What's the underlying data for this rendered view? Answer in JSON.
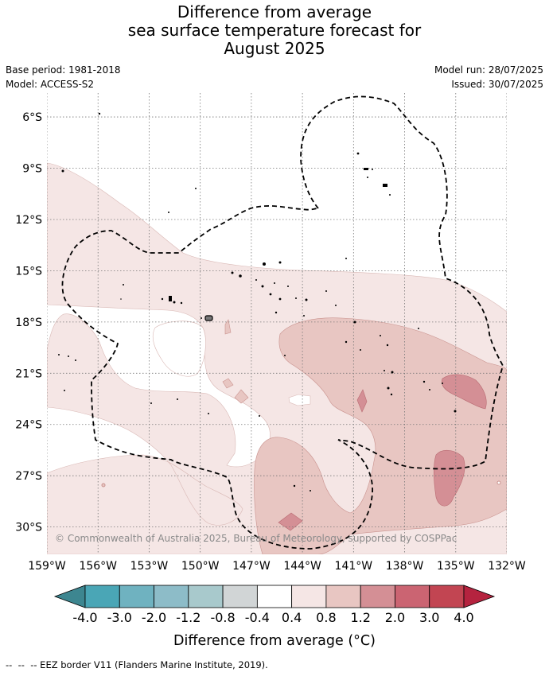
{
  "title": {
    "line1": "Difference from average",
    "line2": "sea surface temperature forecast for",
    "line3": "August 2025"
  },
  "meta_left": {
    "base_period": "Base period: 1981-2018",
    "model": "Model: ACCESS-S2"
  },
  "meta_right": {
    "model_run": "Model run: 28/07/2025",
    "issued": "Issued: 30/07/2025"
  },
  "map": {
    "lon_range": [
      -159,
      -132
    ],
    "lat_range": [
      -31.6,
      -4.6
    ],
    "lon_ticks": [
      "159°W",
      "156°W",
      "153°W",
      "150°W",
      "147°W",
      "144°W",
      "141°W",
      "138°W",
      "135°W",
      "132°W"
    ],
    "lat_ticks": [
      "6°S",
      "9°S",
      "12°S",
      "15°S",
      "18°S",
      "21°S",
      "24°S",
      "27°S",
      "30°S"
    ],
    "gridlines": "dotted",
    "copyright": "© Commonwealth of Australia 2025, Bureau of Meteorology, supported by COSPPac",
    "eez_border": "dashed black line"
  },
  "colorbar": {
    "label": "Difference from average (°C)",
    "tick_labels": [
      "-4.0",
      "-3.0",
      "-2.0",
      "-1.2",
      "-0.8",
      "-0.4",
      "0.4",
      "0.8",
      "1.2",
      "2.0",
      "3.0",
      "4.0"
    ],
    "colors": {
      "below_min": "#3d8690",
      "bins": [
        "#4aa6b6",
        "#6fb2c0",
        "#8dbcc8",
        "#a8c9cc",
        "#d1d5d6",
        "#ffffff",
        "#f5e6e5",
        "#e8c6c2",
        "#d48f95",
        "#cb6472",
        "#c24552"
      ],
      "above_max": "#b5233f"
    }
  },
  "legend_footer": "--  --  -- EEZ border V11 (Flanders Marine Institute, 2019)."
}
